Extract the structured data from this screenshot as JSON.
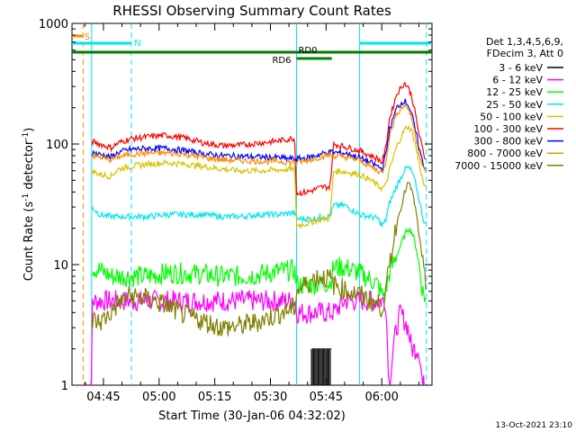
{
  "chart_data": {
    "type": "line",
    "title": "RHESSI Observing Summary Count Rates",
    "xlabel": "Start Time (30-Jan-06 04:32:02)",
    "ylabel_prefix": "Count Rate (s",
    "ylabel_sup": "-1",
    "ylabel_suffix": " detector",
    "ylabel_end": ")",
    "y_scale": "log",
    "ylim": [
      1,
      1000
    ],
    "xlim_minutes": [
      4.5,
      101.5
    ],
    "xtick_labels": [
      {
        "label": "04:45",
        "minute": 12.97
      },
      {
        "label": "05:00",
        "minute": 27.97
      },
      {
        "label": "05:15",
        "minute": 42.97
      },
      {
        "label": "05:30",
        "minute": 57.97
      },
      {
        "label": "05:45",
        "minute": 72.97
      },
      {
        "label": "06:00",
        "minute": 87.97
      }
    ],
    "ytick_labels": [
      {
        "label": "1",
        "value": 1
      },
      {
        "label": "10",
        "value": 10
      },
      {
        "label": "100",
        "value": 100
      },
      {
        "label": "1000",
        "value": 1000
      }
    ],
    "grid": false,
    "legend_position": "right",
    "legend_header": [
      "Det 1,3,4,5,6,9,",
      "FDecim 3, Att 0"
    ],
    "timestamp": "13-Oct-2021 23:10",
    "flags": [
      {
        "label": "S",
        "color": "#ff8c00",
        "start": 4.5,
        "end": 7.5
      },
      {
        "label": "N",
        "color": "#00e5ee",
        "start": 4.5,
        "end": 20.5
      },
      {
        "label": "N",
        "color": "#00e5ee",
        "start": 82.0,
        "end": 101.5
      },
      {
        "label": "RD0",
        "color": "#007f00",
        "start": 4.5,
        "end": 101.5
      },
      {
        "label": "RD6",
        "color": "#007f00",
        "start": 65.0,
        "end": 74.5
      }
    ],
    "vlines": [
      {
        "minute": 7.5,
        "color": "#ff8c00",
        "style": "dashed"
      },
      {
        "minute": 9.8,
        "color": "#00e5ee",
        "style": "solid"
      },
      {
        "minute": 20.5,
        "color": "#00e5ee",
        "style": "dashed"
      },
      {
        "minute": 65.0,
        "color": "#00e5ee",
        "style": "solid"
      },
      {
        "minute": 82.0,
        "color": "#00e5ee",
        "style": "solid"
      },
      {
        "minute": 100.0,
        "color": "#00e5ee",
        "style": "dashed"
      }
    ],
    "series": [
      {
        "name": "3 - 6 keV",
        "color": "#000000",
        "x": [
          69,
          69.3,
          69.6,
          69.9,
          70.2,
          70.5,
          70.8,
          71.1,
          71.4,
          71.7,
          72.0,
          72.3,
          72.6,
          72.9,
          73.2,
          73.5,
          73.8,
          74.1,
          74.4
        ],
        "y": [
          2,
          1,
          2,
          1,
          2,
          1,
          2,
          1,
          2,
          1,
          2,
          1,
          2,
          1,
          2,
          1,
          2,
          1,
          2
        ]
      },
      {
        "name": "6 - 12 keV",
        "color": "#ff00ff",
        "x": [
          8,
          9,
          9.8,
          10,
          12,
          15,
          20,
          25,
          30,
          35,
          40,
          45,
          50,
          55,
          60,
          64.5,
          65,
          68,
          72,
          75,
          78,
          82,
          85,
          87,
          89,
          90,
          91,
          92,
          93,
          95,
          96,
          97,
          98,
          99,
          100
        ],
        "y": [
          1,
          1,
          1,
          5,
          5,
          5,
          5,
          5,
          5,
          5,
          5,
          5,
          5,
          5,
          5,
          5,
          4,
          4,
          4,
          4,
          5,
          5,
          5,
          5,
          5,
          1,
          2,
          3,
          4,
          3,
          2,
          2,
          2,
          1,
          1
        ]
      },
      {
        "name": "12 - 25 keV",
        "color": "#00ff00",
        "x": [
          9.8,
          12,
          15,
          20,
          25,
          30,
          35,
          40,
          45,
          50,
          55,
          60,
          64.5,
          65,
          68,
          70,
          72,
          74,
          75,
          78,
          82,
          85,
          87,
          88,
          89,
          90,
          92,
          94,
          95,
          96,
          97,
          98,
          99,
          100
        ],
        "y": [
          9.5,
          9,
          8,
          8,
          8,
          8.5,
          8.5,
          8.3,
          8.0,
          8.0,
          8.3,
          8.8,
          9.0,
          6.8,
          6.8,
          6.9,
          7.0,
          7.0,
          9.5,
          9.5,
          8.5,
          7.5,
          6.8,
          5.6,
          5.8,
          8.5,
          12,
          17,
          20,
          19,
          15,
          10,
          6,
          5
        ]
      },
      {
        "name": "25 - 50 keV",
        "color": "#00e5ee",
        "x": [
          9.8,
          12,
          15,
          20,
          25,
          30,
          35,
          40,
          45,
          50,
          55,
          60,
          64.5,
          65,
          68,
          70,
          72,
          74,
          75,
          78,
          82,
          85,
          87,
          88,
          89,
          90,
          92,
          94,
          95,
          96,
          97,
          98,
          99,
          100
        ],
        "y": [
          30,
          26,
          25,
          25,
          25,
          26,
          26,
          26,
          25,
          25,
          26,
          26,
          27,
          24,
          24,
          24,
          25,
          25,
          31,
          31,
          26,
          25,
          24,
          21,
          23,
          32,
          45,
          60,
          64,
          60,
          48,
          35,
          25,
          20
        ]
      },
      {
        "name": "50 - 100 keV",
        "color": "#d4c400",
        "x": [
          9.8,
          12,
          15,
          17,
          20,
          25,
          30,
          35,
          40,
          45,
          50,
          55,
          60,
          64.5,
          65,
          68,
          70,
          72,
          74,
          75,
          78,
          82,
          85,
          87,
          88,
          89,
          90,
          92,
          94,
          95,
          96,
          97,
          98,
          99,
          100
        ],
        "y": [
          60,
          56,
          54,
          62,
          65,
          68,
          70,
          68,
          65,
          62,
          60,
          60,
          61,
          62,
          21,
          22,
          23,
          24,
          24,
          60,
          59,
          56,
          50,
          45,
          43,
          45,
          60,
          95,
          130,
          140,
          130,
          100,
          70,
          50,
          40
        ]
      },
      {
        "name": "100 - 300 keV",
        "color": "#ff0000",
        "x": [
          9.8,
          12,
          15,
          17,
          20,
          25,
          30,
          35,
          40,
          45,
          50,
          55,
          60,
          64.5,
          65,
          68,
          70,
          72,
          74,
          75,
          78,
          82,
          85,
          87,
          88,
          89,
          90,
          92,
          94,
          95,
          96,
          97,
          98,
          99,
          100
        ],
        "y": [
          105,
          100,
          93,
          102,
          110,
          115,
          118,
          112,
          102,
          97,
          98,
          102,
          106,
          112,
          39,
          40,
          42,
          44,
          44,
          100,
          95,
          88,
          80,
          75,
          70,
          90,
          160,
          260,
          320,
          300,
          250,
          180,
          120,
          90,
          70
        ]
      },
      {
        "name": "300 - 800 keV",
        "color": "#0000ff",
        "x": [
          9.8,
          12,
          15,
          17,
          20,
          25,
          30,
          35,
          40,
          45,
          50,
          55,
          60,
          64.5,
          65,
          68,
          70,
          72,
          74,
          75,
          78,
          82,
          85,
          87,
          88,
          89,
          90,
          92,
          94,
          95,
          96,
          97,
          98,
          99,
          100
        ],
        "y": [
          85,
          82,
          78,
          85,
          90,
          92,
          92,
          88,
          83,
          80,
          79,
          78,
          77,
          75,
          75,
          77,
          80,
          83,
          86,
          85,
          84,
          77,
          70,
          65,
          62,
          80,
          130,
          200,
          230,
          215,
          180,
          130,
          95,
          70,
          60
        ]
      },
      {
        "name": "800 - 7000 keV",
        "color": "#ff8c00",
        "x": [
          9.8,
          12,
          15,
          17,
          20,
          25,
          30,
          35,
          40,
          45,
          50,
          55,
          60,
          64.5,
          65,
          68,
          70,
          72,
          74,
          75,
          78,
          82,
          85,
          87,
          88,
          89,
          90,
          92,
          94,
          95,
          96,
          97,
          98,
          99,
          100
        ],
        "y": [
          80,
          78,
          74,
          78,
          82,
          84,
          84,
          82,
          77,
          74,
          73,
          72,
          72,
          70,
          70,
          73,
          76,
          79,
          81,
          80,
          78,
          73,
          65,
          60,
          57,
          70,
          115,
          180,
          210,
          200,
          165,
          120,
          85,
          65,
          55
        ]
      },
      {
        "name": "7000 - 15000 keV",
        "color": "#7f7f00",
        "x": [
          9.8,
          12,
          15,
          17,
          20,
          25,
          30,
          35,
          40,
          45,
          50,
          55,
          60,
          64.5,
          65,
          68,
          70,
          72,
          74,
          75,
          78,
          82,
          85,
          87,
          88,
          89,
          90,
          92,
          94,
          95,
          96,
          97,
          98,
          99,
          100
        ],
        "y": [
          3.5,
          3.3,
          4.0,
          4.8,
          5.5,
          5.2,
          4.6,
          3.8,
          3.4,
          3.0,
          3.1,
          3.4,
          3.9,
          4.4,
          6.0,
          7.0,
          7.8,
          8.0,
          7.6,
          6.8,
          6.2,
          5.6,
          5.0,
          4.7,
          4.4,
          5.5,
          10,
          22,
          38,
          48,
          42,
          30,
          18,
          10,
          6
        ]
      }
    ]
  }
}
